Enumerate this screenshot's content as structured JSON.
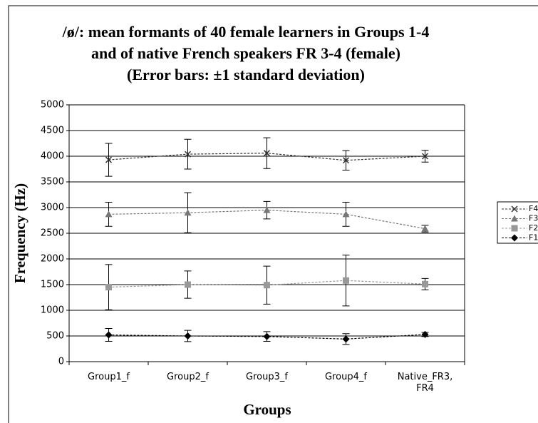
{
  "chart_data": {
    "type": "line",
    "title": [
      "/ø/: mean formants of 40 female learners in Groups 1-4",
      "and of native French speakers FR 3-4 (female)",
      "(Error bars: ±1 standard deviation)"
    ],
    "ylabel": "Frequency (Hz)",
    "xlabel": "Groups",
    "categories": [
      "Group1_f",
      "Group2_f",
      "Group3_f",
      "Group4_f",
      "Native_FR3, FR4"
    ],
    "series": [
      {
        "name": "F4",
        "color": "#333333",
        "marker": "x",
        "values": [
          3930,
          4040,
          4060,
          3920,
          4000
        ],
        "errors": [
          320,
          290,
          300,
          190,
          115
        ]
      },
      {
        "name": "F3",
        "color": "#777777",
        "marker": "triangle",
        "values": [
          2870,
          2900,
          2950,
          2870,
          2590
        ],
        "errors": [
          235,
          390,
          170,
          235,
          65
        ]
      },
      {
        "name": "F2",
        "color": "#999999",
        "marker": "square",
        "values": [
          1450,
          1500,
          1490,
          1580,
          1510
        ],
        "errors": [
          440,
          265,
          370,
          495,
          110
        ]
      },
      {
        "name": "F1",
        "color": "#000000",
        "marker": "diamond",
        "values": [
          520,
          500,
          490,
          440,
          530
        ],
        "errors": [
          125,
          110,
          95,
          105,
          40
        ]
      }
    ],
    "ylim": [
      0,
      5000
    ],
    "yticks": [
      0,
      500,
      1000,
      1500,
      2000,
      2500,
      3000,
      3500,
      4000,
      4500,
      5000
    ],
    "grid": true,
    "legend": "right"
  }
}
